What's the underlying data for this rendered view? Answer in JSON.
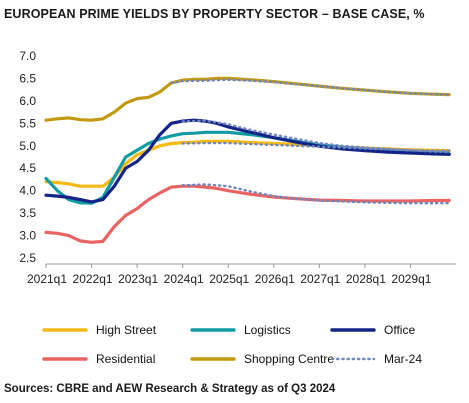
{
  "title": "EUROPEAN PRIME YIELDS BY PROPERTY SECTOR – BASE CASE, %",
  "source": "Sources: CBRE and AEW Research & Strategy as of Q3 2024",
  "chart_data": {
    "type": "line",
    "title": "EUROPEAN PRIME YIELDS BY PROPERTY SECTOR – BASE CASE, %",
    "xlabel": "",
    "ylabel": "",
    "ylim": [
      2.5,
      7.0
    ],
    "yticks": [
      "7.0",
      "6.5",
      "6.0",
      "5.5",
      "5.0",
      "4.5",
      "4.0",
      "3.5",
      "3.0",
      "2.5"
    ],
    "xlim": [
      2021.0,
      2030.0
    ],
    "xticks": [
      "2021q1",
      "2022q1",
      "2023q1",
      "2024q1",
      "2025q1",
      "2026q1",
      "2027q1",
      "2028q1",
      "2029q1"
    ],
    "grid": false,
    "legend_position": "bottom",
    "series": [
      {
        "name": "High Street",
        "color": "#F5B914",
        "style": "solid",
        "x": [
          2021.0,
          2021.25,
          2021.5,
          2021.75,
          2022.0,
          2022.25,
          2022.5,
          2022.75,
          2023.0,
          2023.25,
          2023.5,
          2023.75,
          2024.0,
          2024.25,
          2024.5,
          2024.75,
          2025.0,
          2025.5,
          2026.0,
          2026.5,
          2027.0,
          2027.5,
          2028.0,
          2028.5,
          2029.0,
          2029.5,
          2029.85
        ],
        "y": [
          4.2,
          4.18,
          4.15,
          4.1,
          4.1,
          4.1,
          4.3,
          4.6,
          4.8,
          4.9,
          5.0,
          5.05,
          5.07,
          5.08,
          5.1,
          5.1,
          5.1,
          5.07,
          5.05,
          5.03,
          5.0,
          4.97,
          4.95,
          4.93,
          4.91,
          4.9,
          4.89
        ]
      },
      {
        "name": "Logistics",
        "color": "#139BA3",
        "style": "solid",
        "x": [
          2021.0,
          2021.25,
          2021.5,
          2021.75,
          2022.0,
          2022.25,
          2022.5,
          2022.75,
          2023.0,
          2023.25,
          2023.5,
          2023.75,
          2024.0,
          2024.25,
          2024.5,
          2024.75,
          2025.0,
          2025.5,
          2026.0,
          2026.5,
          2027.0,
          2027.5,
          2028.0,
          2028.5,
          2029.0,
          2029.5,
          2029.85
        ],
        "y": [
          4.27,
          4.0,
          3.8,
          3.73,
          3.72,
          3.85,
          4.3,
          4.75,
          4.9,
          5.05,
          5.15,
          5.22,
          5.27,
          5.28,
          5.3,
          5.3,
          5.3,
          5.25,
          5.18,
          5.1,
          5.02,
          4.97,
          4.93,
          4.9,
          4.87,
          4.84,
          4.82
        ]
      },
      {
        "name": "Office",
        "color": "#142387",
        "style": "solid",
        "x": [
          2021.0,
          2021.25,
          2021.5,
          2021.75,
          2022.0,
          2022.25,
          2022.5,
          2022.75,
          2023.0,
          2023.25,
          2023.5,
          2023.75,
          2024.0,
          2024.25,
          2024.5,
          2024.75,
          2025.0,
          2025.5,
          2026.0,
          2026.5,
          2027.0,
          2027.5,
          2028.0,
          2028.5,
          2029.0,
          2029.5,
          2029.85
        ],
        "y": [
          3.9,
          3.88,
          3.85,
          3.8,
          3.75,
          3.8,
          4.1,
          4.5,
          4.65,
          4.9,
          5.25,
          5.5,
          5.55,
          5.57,
          5.55,
          5.5,
          5.42,
          5.3,
          5.18,
          5.08,
          4.99,
          4.93,
          4.89,
          4.86,
          4.84,
          4.82,
          4.81
        ]
      },
      {
        "name": "Residential",
        "color": "#E96363",
        "style": "solid",
        "x": [
          2021.0,
          2021.25,
          2021.5,
          2021.75,
          2022.0,
          2022.25,
          2022.5,
          2022.75,
          2023.0,
          2023.25,
          2023.5,
          2023.75,
          2024.0,
          2024.25,
          2024.5,
          2024.75,
          2025.0,
          2025.5,
          2026.0,
          2026.5,
          2027.0,
          2027.5,
          2028.0,
          2028.5,
          2029.0,
          2029.5,
          2029.85
        ],
        "y": [
          3.07,
          3.05,
          3.0,
          2.88,
          2.85,
          2.87,
          3.2,
          3.45,
          3.6,
          3.8,
          3.95,
          4.08,
          4.1,
          4.1,
          4.08,
          4.05,
          4.0,
          3.92,
          3.86,
          3.82,
          3.79,
          3.78,
          3.77,
          3.77,
          3.77,
          3.78,
          3.78
        ]
      },
      {
        "name": "Shopping Centre",
        "color": "#C29A12",
        "style": "solid",
        "x": [
          2021.0,
          2021.25,
          2021.5,
          2021.75,
          2022.0,
          2022.25,
          2022.5,
          2022.75,
          2023.0,
          2023.25,
          2023.5,
          2023.75,
          2024.0,
          2024.25,
          2024.5,
          2024.75,
          2025.0,
          2025.5,
          2026.0,
          2026.5,
          2027.0,
          2027.5,
          2028.0,
          2028.5,
          2029.0,
          2029.5,
          2029.85
        ],
        "y": [
          5.57,
          5.6,
          5.62,
          5.58,
          5.57,
          5.6,
          5.75,
          5.95,
          6.05,
          6.08,
          6.2,
          6.4,
          6.46,
          6.48,
          6.48,
          6.5,
          6.5,
          6.47,
          6.43,
          6.38,
          6.33,
          6.28,
          6.24,
          6.2,
          6.17,
          6.15,
          6.14
        ]
      },
      {
        "name": "Mar-24",
        "color": "#6F87BE",
        "style": "dotted",
        "segments": [
          {
            "x": [
              2023.75,
              2024.0,
              2024.5,
              2025.0,
              2025.5,
              2026.0,
              2026.5,
              2027.0,
              2027.5,
              2028.0,
              2028.5,
              2029.0,
              2029.5,
              2029.85
            ],
            "y": [
              6.4,
              6.44,
              6.45,
              6.47,
              6.45,
              6.42,
              6.37,
              6.33,
              6.28,
              6.24,
              6.2,
              6.17,
              6.15,
              6.14
            ]
          },
          {
            "x": [
              2024.0,
              2024.5,
              2025.0,
              2025.5,
              2026.0,
              2026.5,
              2027.0,
              2027.5,
              2028.0,
              2028.5,
              2029.0,
              2029.5,
              2029.85
            ],
            "y": [
              5.54,
              5.56,
              5.48,
              5.35,
              5.25,
              5.15,
              5.06,
              5.0,
              4.96,
              4.93,
              4.9,
              4.87,
              4.86
            ]
          },
          {
            "x": [
              2024.0,
              2024.5,
              2025.0,
              2025.5,
              2026.0,
              2026.5,
              2027.0,
              2027.5,
              2028.0,
              2028.5,
              2029.0,
              2029.5,
              2029.85
            ],
            "y": [
              5.05,
              5.06,
              5.06,
              5.04,
              5.02,
              5.0,
              4.98,
              4.96,
              4.94,
              4.92,
              4.9,
              4.89,
              4.89
            ]
          },
          {
            "x": [
              2024.0,
              2024.5,
              2025.0,
              2025.5,
              2026.0,
              2026.5,
              2027.0,
              2027.5,
              2028.0,
              2028.5,
              2029.0,
              2029.5,
              2029.85
            ],
            "y": [
              4.12,
              4.14,
              4.1,
              3.98,
              3.88,
              3.82,
              3.78,
              3.76,
              3.74,
              3.73,
              3.72,
              3.72,
              3.72
            ]
          }
        ]
      }
    ]
  }
}
